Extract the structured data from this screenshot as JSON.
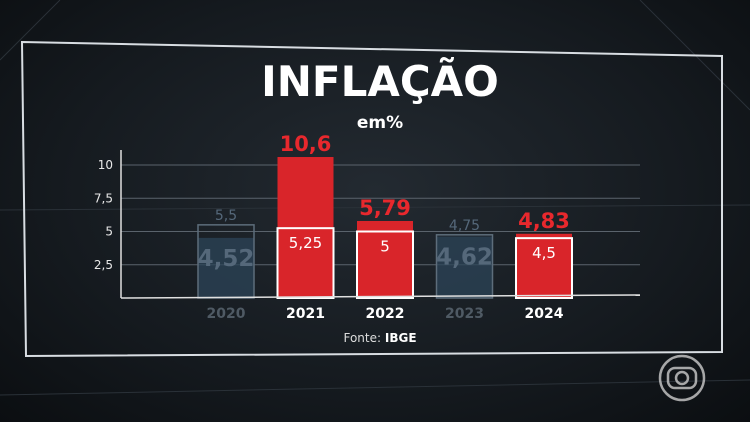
{
  "chart_data": {
    "type": "bar",
    "title": "INFLAÇÃO",
    "subtitle": "em%",
    "source_label": "Fonte:",
    "source_name": "IBGE",
    "categories": [
      "2020",
      "2021",
      "2022",
      "2023",
      "2024"
    ],
    "series": [
      {
        "role": "inflation",
        "values": [
          4.52,
          10.6,
          5.79,
          4.62,
          4.83
        ],
        "labels": [
          "4,52",
          "10,6",
          "5,79",
          "4,62",
          "4,83"
        ]
      },
      {
        "role": "target-ceiling",
        "values": [
          5.5,
          5.25,
          5,
          4.75,
          4.5
        ],
        "labels": [
          "5,5",
          "5,25",
          "5",
          "4,75",
          "4,5"
        ]
      }
    ],
    "above_target": [
      false,
      true,
      true,
      false,
      true
    ],
    "yticks": [
      2.5,
      5,
      7.5,
      10
    ],
    "ytick_labels": [
      "2,5",
      "5",
      "7,5",
      "10"
    ],
    "ylim": [
      0,
      11
    ],
    "grid": true,
    "colors": {
      "above": "#d9252a",
      "within": "#2c4458",
      "dim_text": "#55687a",
      "label_red": "#e8282d"
    }
  }
}
